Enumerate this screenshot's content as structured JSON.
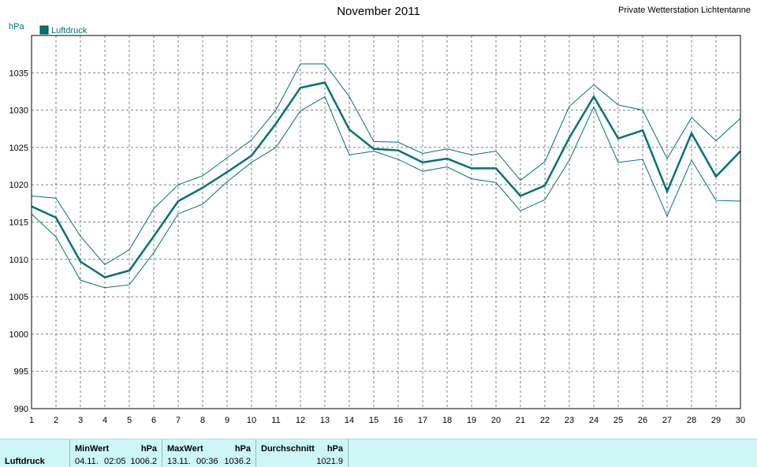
{
  "chart_data": {
    "type": "line",
    "title": "November 2011",
    "station": "Private Wetterstation Lichtentanne",
    "ylabel": "hPa",
    "ylim": [
      990,
      1040
    ],
    "yticks": [
      990,
      995,
      1000,
      1005,
      1010,
      1015,
      1020,
      1025,
      1030,
      1035
    ],
    "xlim": [
      1,
      30
    ],
    "x": [
      1,
      2,
      3,
      4,
      5,
      6,
      7,
      8,
      9,
      10,
      11,
      12,
      13,
      14,
      15,
      16,
      17,
      18,
      19,
      20,
      21,
      22,
      23,
      24,
      25,
      26,
      27,
      28,
      29,
      30
    ],
    "grid": true,
    "legend": "top-left",
    "color": "#007373",
    "series": [
      {
        "name": "Luftdruck",
        "role": "mean",
        "values": [
          1017.1,
          1015.6,
          1009.7,
          1007.6,
          1008.5,
          1013.1,
          1017.8,
          1019.6,
          1021.7,
          1023.9,
          1028.2,
          1033.0,
          1033.7,
          1027.4,
          1024.8,
          1024.6,
          1023.0,
          1023.5,
          1022.2,
          1022.2,
          1018.5,
          1019.9,
          1026.3,
          1031.8,
          1026.2,
          1027.3,
          1019.1,
          1026.9,
          1021.1,
          1024.5
        ]
      },
      {
        "role": "max",
        "values": [
          1018.5,
          1018.2,
          1013.1,
          1009.3,
          1011.3,
          1016.8,
          1020.0,
          1021.2,
          1023.6,
          1026.0,
          1030.0,
          1036.2,
          1036.2,
          1031.8,
          1025.8,
          1025.7,
          1024.2,
          1024.8,
          1024.0,
          1024.5,
          1020.6,
          1023.1,
          1030.5,
          1033.4,
          1030.7,
          1030.0,
          1023.5,
          1029.0,
          1025.9,
          1028.9
        ]
      },
      {
        "role": "min",
        "values": [
          1016.1,
          1013.0,
          1007.2,
          1006.2,
          1006.6,
          1010.9,
          1016.1,
          1017.4,
          1020.4,
          1023.0,
          1025.0,
          1029.9,
          1031.8,
          1024.0,
          1024.5,
          1023.4,
          1021.8,
          1022.4,
          1020.8,
          1020.3,
          1016.5,
          1018.0,
          1023.3,
          1030.4,
          1023.0,
          1023.4,
          1015.8,
          1023.3,
          1017.9,
          1017.8
        ]
      }
    ]
  },
  "stats": {
    "row_label": "Luftdruck",
    "min": {
      "header": "MinWert",
      "unit": "hPa",
      "date": "04.11.",
      "time": "02:05",
      "value": "1006.2"
    },
    "max": {
      "header": "MaxWert",
      "unit": "hPa",
      "date": "13.11.",
      "time": "00:36",
      "value": "1036.2"
    },
    "avg": {
      "header": "Durchschnitt",
      "unit": "hPa",
      "value": "1021.9"
    }
  }
}
